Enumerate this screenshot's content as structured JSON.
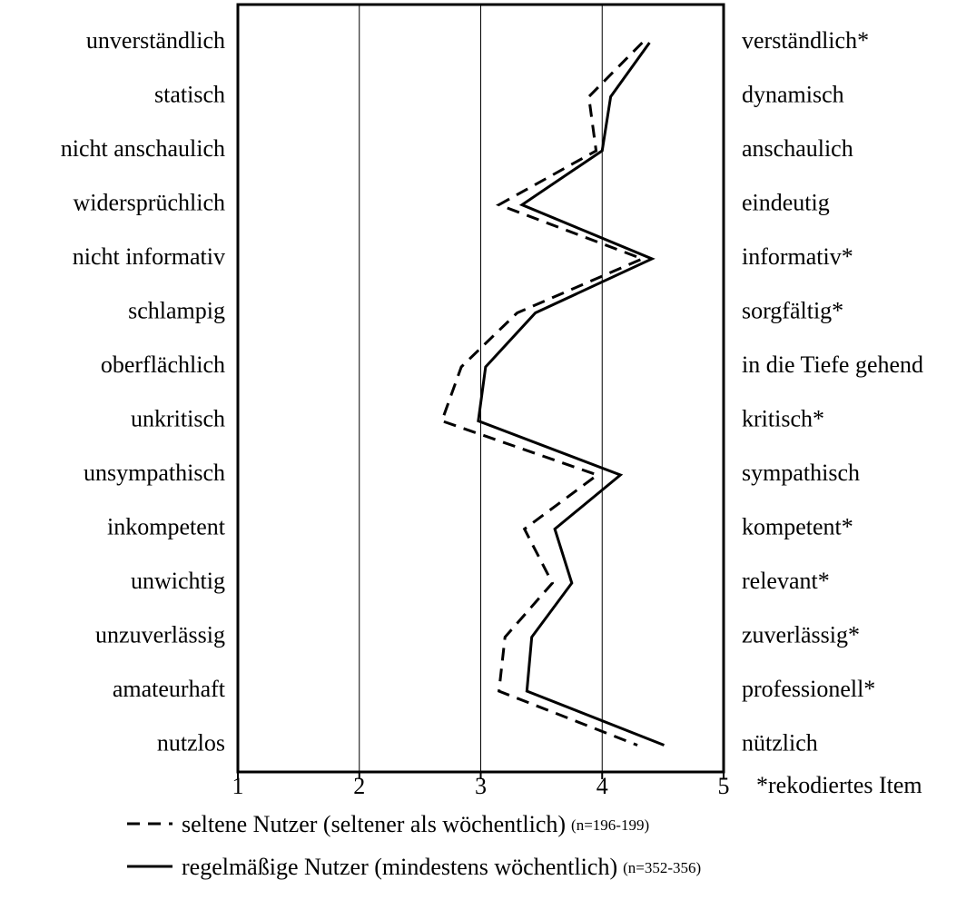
{
  "chart_data": {
    "type": "line",
    "categories": [
      "unverständlich",
      "statisch",
      "nicht anschaulich",
      "widersprüchlich",
      "nicht informativ",
      "schlampig",
      "oberflächlich",
      "unkritisch",
      "unsympathisch",
      "inkompetent",
      "unwichtig",
      "unzuverlässig",
      "amateurhaft",
      "nutzlos"
    ],
    "right_labels": [
      "verständlich*",
      "dynamisch",
      "anschaulich",
      "eindeutig",
      "informativ*",
      "sorgfältig*",
      "in die Tiefe gehend",
      "kritisch*",
      "sympathisch",
      "kompetent*",
      "relevant*",
      "zuverlässig*",
      "professionell*",
      "nützlich"
    ],
    "series": [
      {
        "name": "seltene Nutzer (seltener als wöchentlich)",
        "n_label": "(n=196-199)",
        "color": "#000000",
        "dash": true,
        "values": [
          4.33,
          3.89,
          3.95,
          3.15,
          4.33,
          3.3,
          2.84,
          2.68,
          3.96,
          3.36,
          3.59,
          3.2,
          3.15,
          4.29
        ]
      },
      {
        "name": "regelmäßige Nutzer (mindestens wöchentlich)",
        "n_label": "(n=352-356)",
        "color": "#000000",
        "dash": false,
        "values": [
          4.39,
          4.07,
          4.0,
          3.34,
          4.41,
          3.45,
          3.04,
          2.98,
          4.15,
          3.61,
          3.75,
          3.42,
          3.38,
          4.51
        ]
      }
    ],
    "xlim": [
      1,
      5
    ],
    "xticks": [
      1,
      2,
      3,
      4,
      5
    ],
    "note": "*rekodiertes Item",
    "grid": true
  }
}
